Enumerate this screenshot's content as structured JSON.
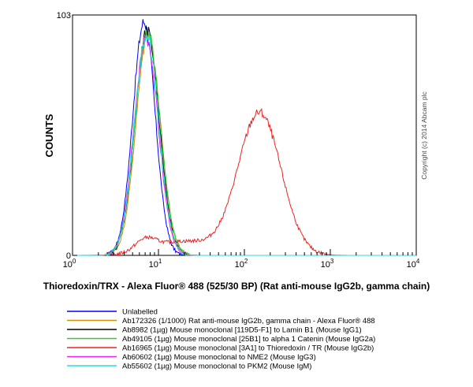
{
  "chart_data": {
    "type": "histogram",
    "xlabel": "Thioredoxin/TRX - Alexa Fluor® 488 (525/30 BP) (Rat anti-mouse IgG2b, gamma chain)",
    "ylabel": "COUNTS",
    "x_scale": "log",
    "xlim": [
      1,
      10000
    ],
    "ylim": [
      0,
      103
    ],
    "x_ticks": [
      {
        "base": "10",
        "exp": "0",
        "value": 1
      },
      {
        "base": "10",
        "exp": "1",
        "value": 10
      },
      {
        "base": "10",
        "exp": "2",
        "value": 100
      },
      {
        "base": "10",
        "exp": "3",
        "value": 1000
      },
      {
        "base": "10",
        "exp": "4",
        "value": 10000
      }
    ],
    "y_ticks": [
      {
        "label": "0",
        "value": 0
      },
      {
        "label": "103",
        "value": 103
      }
    ],
    "grid": false,
    "legend_position": "bottom",
    "copyright": "Copyright (c) 2014 Abcam plc",
    "series": [
      {
        "name": "Unlabelled",
        "color": "#0000ff",
        "peak_x": 6.8,
        "peak_y": 100,
        "width": 0.13
      },
      {
        "name": "Ab172326 (1/1000) Rat anti-mouse IgG2b, gamma chain - Alexa Fluor® 488",
        "color": "#d4900a",
        "peak_x": 7.6,
        "peak_y": 95,
        "width": 0.14
      },
      {
        "name": "Ab8982 (1µg) Mouse monoclonal [119D5-F1] to Lamin B1 (Mouse IgG1)",
        "color": "#000000",
        "peak_x": 7.4,
        "peak_y": 96,
        "width": 0.14
      },
      {
        "name": "Ab49105 (1µg) Mouse monoclonal [25B1] to alpha 1 Catenin (Mouse IgG2a)",
        "color": "#33cc33",
        "peak_x": 7.5,
        "peak_y": 95,
        "width": 0.145
      },
      {
        "name": "Ab16965 (1µg) Mouse monoclonal [3A1] to Thioredoxin / TR (Mouse IgG2b)",
        "color": "#ee2222",
        "peak_x": 150,
        "peak_y": 61,
        "width": 0.25
      },
      {
        "name": "Ab60602 (1µg) Mouse monoclonal to NME2 (Mouse IgG3)",
        "color": "#ee22ee",
        "peak_x": 7.2,
        "peak_y": 93,
        "width": 0.14
      },
      {
        "name": "Ab55602 (1µg) Mouse monoclonal to PKM2 (Mouse IgM)",
        "color": "#22dddd",
        "peak_x": 7.3,
        "peak_y": 94,
        "width": 0.14
      }
    ]
  }
}
